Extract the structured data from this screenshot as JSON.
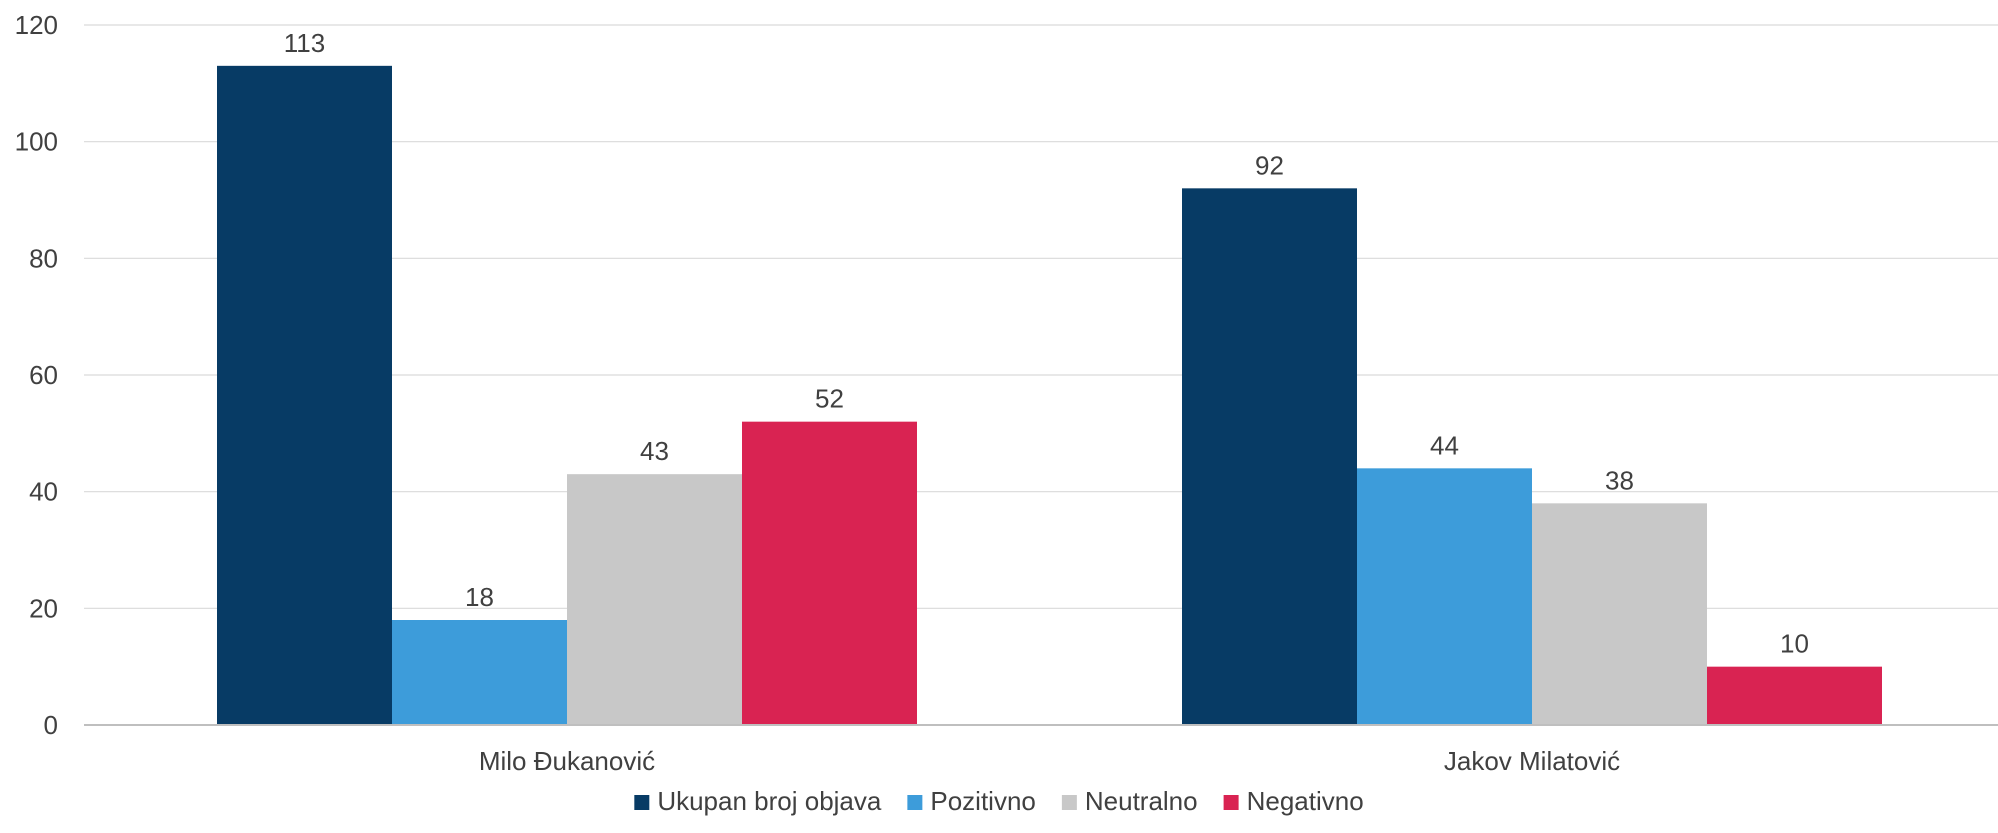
{
  "chart_data": {
    "type": "bar",
    "title": "",
    "xlabel": "",
    "ylabel": "",
    "categories": [
      "Milo Đukanović",
      "Jakov Milatović"
    ],
    "series": [
      {
        "name": "Ukupan broj objava",
        "color": "#073b65",
        "values": [
          113,
          92
        ]
      },
      {
        "name": "Pozitivno",
        "color": "#3d9cda",
        "values": [
          18,
          44
        ]
      },
      {
        "name": "Neutralno",
        "color": "#c8c8c8",
        "values": [
          43,
          38
        ]
      },
      {
        "name": "Negativno",
        "color": "#d92352",
        "values": [
          52,
          10
        ]
      }
    ],
    "ylim": [
      0,
      120
    ],
    "yticks": [
      0,
      20,
      40,
      60,
      80,
      100,
      120
    ],
    "grid": true,
    "data_labels": true,
    "legend_position": "bottom-center"
  }
}
